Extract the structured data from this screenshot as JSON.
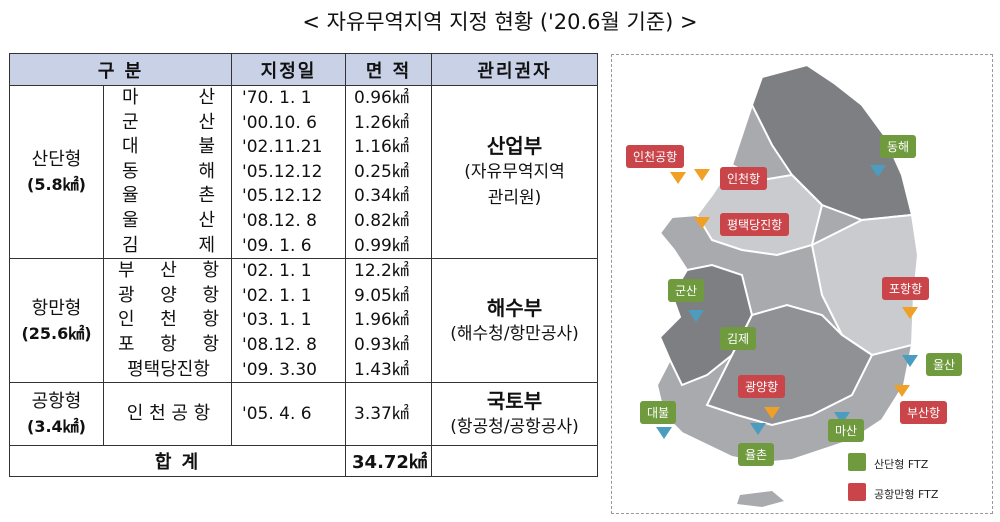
{
  "title": "< 자유무역지역 지정 현황 ('20.6월 기준) >",
  "headers": [
    "구    분",
    "지정일",
    "면 적",
    "관리권자"
  ],
  "groups": [
    {
      "name": "산단형",
      "area": "(5.8㎢)",
      "manager_main": "산업부",
      "manager_sub1": "(자유무역지역",
      "manager_sub2": "관리원)",
      "rows": [
        {
          "n1": "마",
          "n2": "산",
          "date": "'70. 1. 1",
          "area": "0.96㎢"
        },
        {
          "n1": "군",
          "n2": "산",
          "date": "'00.10. 6",
          "area": "1.26㎢"
        },
        {
          "n1": "대",
          "n2": "불",
          "date": "'02.11.21",
          "area": "1.16㎢"
        },
        {
          "n1": "동",
          "n2": "해",
          "date": "'05.12.12",
          "area": "0.25㎢"
        },
        {
          "n1": "율",
          "n2": "촌",
          "date": "'05.12.12",
          "area": "0.34㎢"
        },
        {
          "n1": "울",
          "n2": "산",
          "date": "'08.12. 8",
          "area": "0.82㎢"
        },
        {
          "n1": "김",
          "n2": "제",
          "date": "'09. 1. 6",
          "area": "0.99㎢"
        }
      ]
    },
    {
      "name": "항만형",
      "area": "(25.6㎢)",
      "manager_main": "해수부",
      "manager_sub1": "(해수청/항만공사)",
      "rows": [
        {
          "n1": "부",
          "n2": "산",
          "n3": "항",
          "date": "'02. 1. 1",
          "area": "12.2㎢"
        },
        {
          "n1": "광",
          "n2": "양",
          "n3": "항",
          "date": "'02. 1. 1",
          "area": "9.05㎢"
        },
        {
          "n1": "인",
          "n2": "천",
          "n3": "항",
          "date": "'03. 1. 1",
          "area": "1.96㎢"
        },
        {
          "n1": "포",
          "n2": "항",
          "n3": "항",
          "date": "'08.12. 8",
          "area": "0.93㎢"
        },
        {
          "full": "평택당진항",
          "date": "'09. 3.30",
          "area": "1.43㎢"
        }
      ]
    },
    {
      "name": "공항형",
      "area": "(3.4㎢)",
      "manager_main": "국토부",
      "manager_sub1": "(항공청/공항공사)",
      "rows": [
        {
          "full": "인 천 공 항",
          "date": "'05. 4. 6",
          "area": "3.37㎢"
        }
      ]
    }
  ],
  "total_label": "합    계",
  "total_area": "34.72㎢",
  "map": {
    "labels_green": [
      "동해",
      "군산",
      "김제",
      "울산",
      "대불",
      "마산",
      "율촌"
    ],
    "labels_red": [
      "인천공항",
      "인천항",
      "평택당진항",
      "포항항",
      "광양항",
      "부산항"
    ],
    "legend_green": "산단형 FTZ",
    "legend_red": "공항만형 FTZ",
    "colors": {
      "green": "#6f9a3e",
      "red": "#c9454a",
      "land_dark": "#7d7f83",
      "land_mid": "#a8aaae",
      "land_light": "#c9cbce"
    }
  }
}
